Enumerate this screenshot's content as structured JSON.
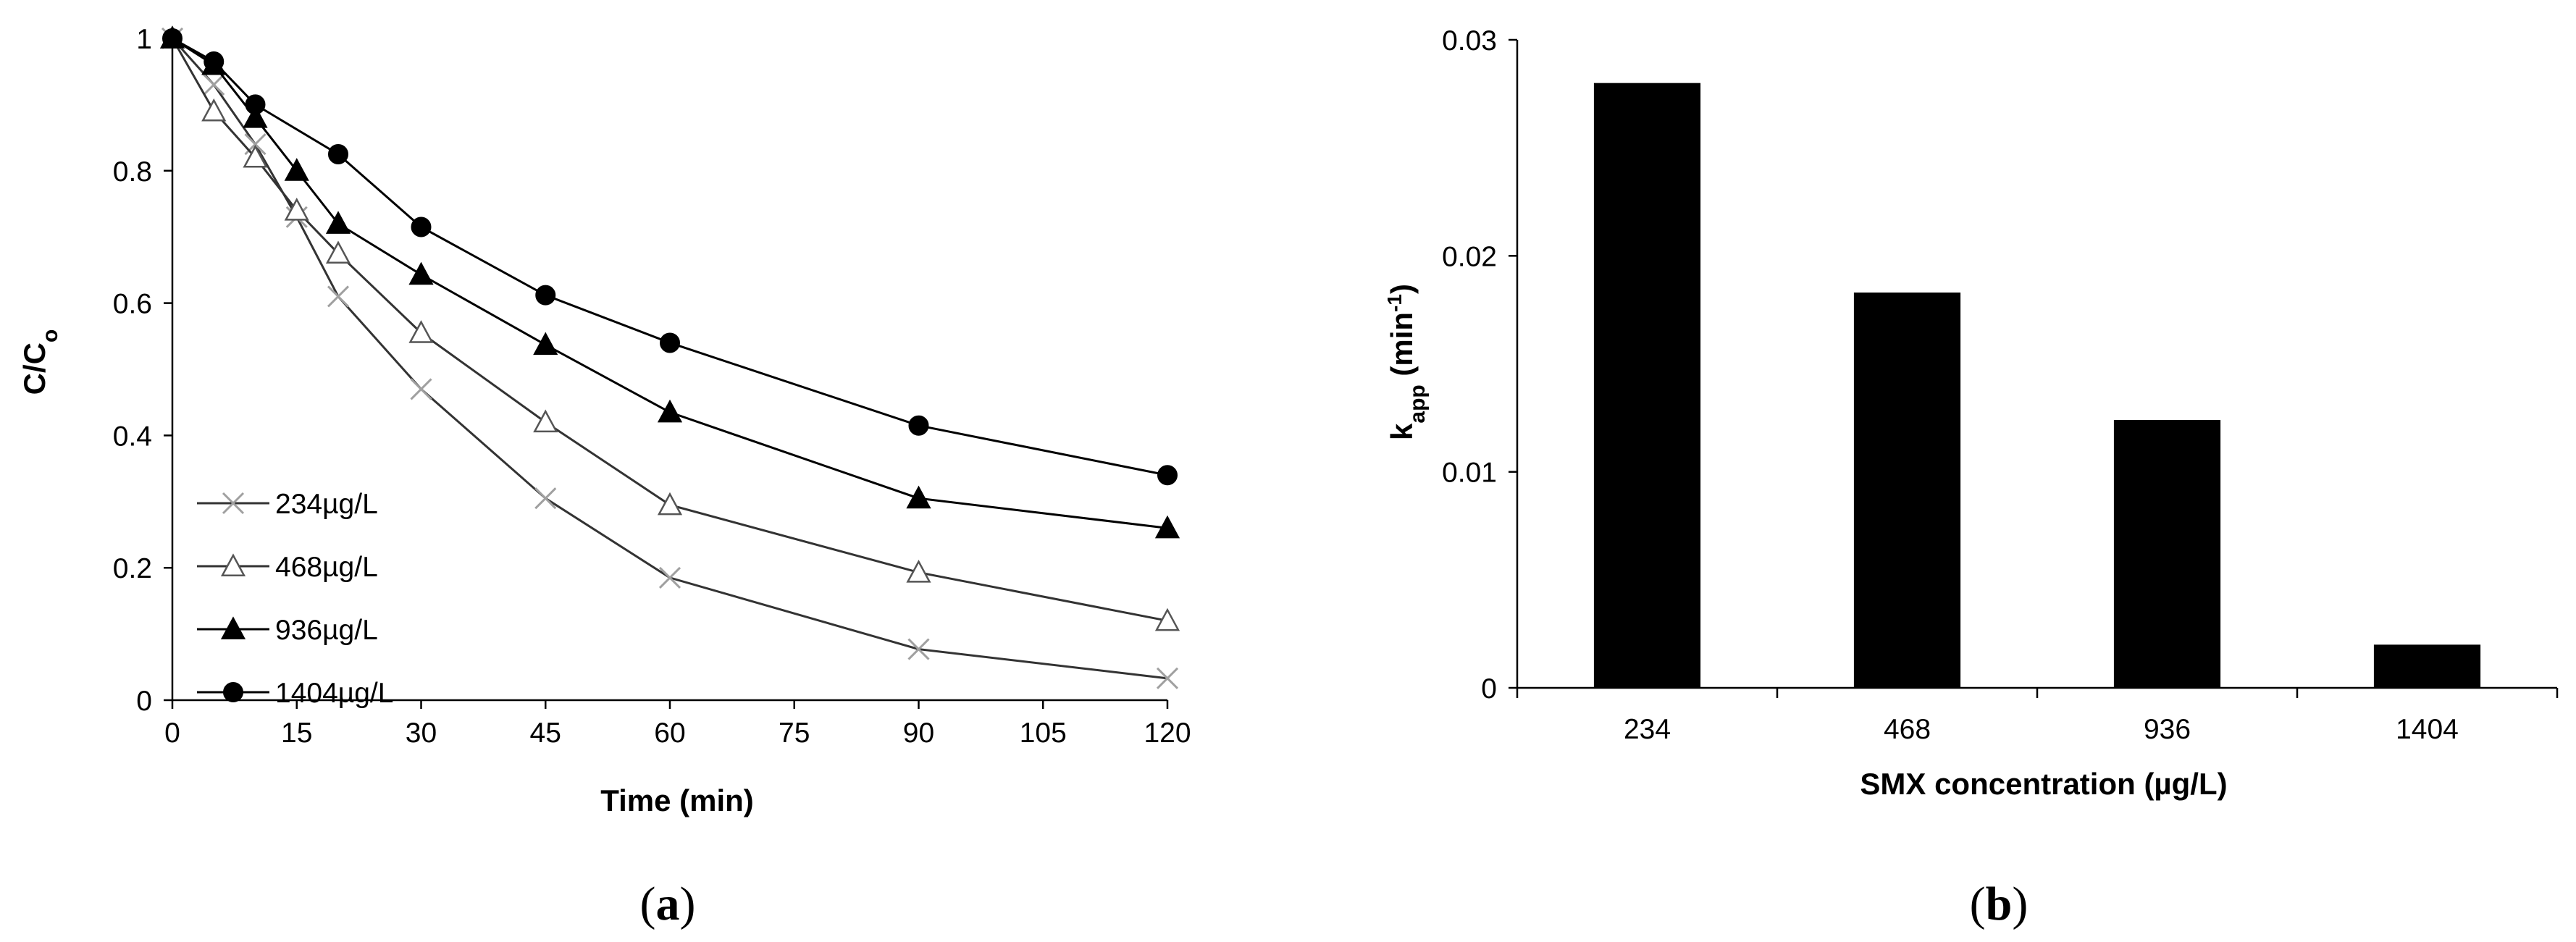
{
  "chart_data": [
    {
      "type": "line",
      "panel_label": "(a)",
      "caption_letter": "a",
      "title": "",
      "xlabel": "Time (min)",
      "ylabel_main": "C/C",
      "ylabel_sub": "o",
      "xlim": [
        0,
        120
      ],
      "ylim": [
        0,
        1
      ],
      "xticks": [
        "0",
        "15",
        "30",
        "45",
        "60",
        "75",
        "90",
        "105",
        "120"
      ],
      "yticks": [
        "0",
        "0.2",
        "0.4",
        "0.6",
        "0.8",
        "1"
      ],
      "legend_position": "bottom-left",
      "grid": false,
      "series": [
        {
          "name": "234µg/L",
          "marker": "x",
          "color": "#333333",
          "marker_color": "#a0a0a0",
          "x": [
            0,
            5,
            10,
            15,
            20,
            30,
            45,
            60,
            90,
            120
          ],
          "y": [
            1.0,
            0.93,
            0.84,
            0.73,
            0.61,
            0.47,
            0.305,
            0.185,
            0.077,
            0.033
          ]
        },
        {
          "name": "468µg/L",
          "marker": "triangle-open",
          "color": "#333333",
          "marker_color": "#555555",
          "x": [
            0,
            5,
            10,
            15,
            20,
            30,
            45,
            60,
            90,
            120
          ],
          "y": [
            1.0,
            0.89,
            0.82,
            0.74,
            0.675,
            0.555,
            0.42,
            0.295,
            0.193,
            0.12
          ]
        },
        {
          "name": "936µg/L",
          "marker": "triangle-filled",
          "color": "#000000",
          "marker_color": "#000000",
          "x": [
            0,
            5,
            10,
            15,
            20,
            30,
            45,
            60,
            90,
            120
          ],
          "y": [
            1.0,
            0.96,
            0.88,
            0.8,
            0.72,
            0.643,
            0.537,
            0.435,
            0.305,
            0.26
          ]
        },
        {
          "name": "1404µg/L",
          "marker": "circle-filled",
          "color": "#000000",
          "marker_color": "#000000",
          "x": [
            0,
            5,
            10,
            20,
            30,
            45,
            60,
            90,
            120
          ],
          "y": [
            1.0,
            0.965,
            0.9,
            0.825,
            0.715,
            0.612,
            0.54,
            0.415,
            0.34
          ]
        }
      ]
    },
    {
      "type": "bar",
      "panel_label": "(b)",
      "caption_letter": "b",
      "title": "",
      "xlabel": "SMX concentration (µg/L)",
      "ylabel_main": "k",
      "ylabel_sub": "app",
      "ylabel_unit_open": " (min",
      "ylabel_sup": "-1",
      "ylabel_unit_close": ")",
      "ylim": [
        0,
        0.03
      ],
      "yticks": [
        "0",
        "0.01",
        "0.02",
        "0.03"
      ],
      "categories": [
        "234",
        "468",
        "936",
        "1404"
      ],
      "values": [
        0.028,
        0.0183,
        0.0124,
        0.002
      ],
      "bar_color": "#000000",
      "grid": false
    }
  ],
  "captions": {
    "a": "a",
    "b": "b"
  }
}
